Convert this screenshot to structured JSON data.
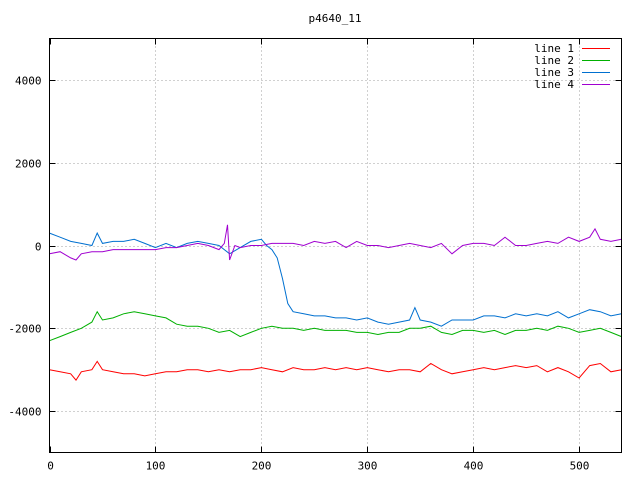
{
  "chart_data": {
    "type": "line",
    "title": "p4640_11",
    "xlabel": "",
    "ylabel": "",
    "xlim": [
      0,
      540
    ],
    "ylim": [
      -5000,
      5000
    ],
    "x_ticks": [
      0,
      100,
      200,
      300,
      400,
      500
    ],
    "y_ticks": [
      -4000,
      -2000,
      0,
      2000,
      4000
    ],
    "grid": true,
    "legend_position": "top-right",
    "series": [
      {
        "name": "line 1",
        "color": "#ff0000",
        "x": [
          0,
          10,
          20,
          25,
          30,
          40,
          45,
          50,
          60,
          70,
          80,
          90,
          100,
          110,
          120,
          130,
          140,
          150,
          160,
          170,
          180,
          190,
          200,
          210,
          220,
          230,
          240,
          250,
          260,
          270,
          280,
          290,
          300,
          310,
          320,
          330,
          340,
          350,
          360,
          370,
          380,
          390,
          400,
          410,
          420,
          430,
          440,
          450,
          460,
          470,
          480,
          490,
          500,
          510,
          520,
          530,
          540
        ],
        "values": [
          -3000,
          -3050,
          -3100,
          -3250,
          -3050,
          -3000,
          -2800,
          -3000,
          -3050,
          -3100,
          -3100,
          -3150,
          -3100,
          -3050,
          -3050,
          -3000,
          -3000,
          -3050,
          -3000,
          -3050,
          -3000,
          -3000,
          -2950,
          -3000,
          -3050,
          -2950,
          -3000,
          -3000,
          -2950,
          -3000,
          -2950,
          -3000,
          -2950,
          -3000,
          -3050,
          -3000,
          -3000,
          -3050,
          -2850,
          -3000,
          -3100,
          -3050,
          -3000,
          -2950,
          -3000,
          -2950,
          -2900,
          -2950,
          -2900,
          -3050,
          -2950,
          -3050,
          -3200,
          -2900,
          -2850,
          -3050,
          -3000
        ]
      },
      {
        "name": "line 2",
        "color": "#00b000",
        "x": [
          0,
          10,
          20,
          30,
          40,
          45,
          50,
          60,
          70,
          80,
          90,
          100,
          110,
          120,
          130,
          140,
          150,
          160,
          170,
          180,
          190,
          200,
          210,
          220,
          230,
          240,
          250,
          260,
          270,
          280,
          290,
          300,
          310,
          320,
          330,
          340,
          350,
          360,
          370,
          380,
          390,
          400,
          410,
          420,
          430,
          440,
          450,
          460,
          470,
          480,
          490,
          500,
          510,
          520,
          530,
          540
        ],
        "values": [
          -2300,
          -2200,
          -2100,
          -2000,
          -1850,
          -1600,
          -1800,
          -1750,
          -1650,
          -1600,
          -1650,
          -1700,
          -1750,
          -1900,
          -1950,
          -1950,
          -2000,
          -2100,
          -2050,
          -2200,
          -2100,
          -2000,
          -1950,
          -2000,
          -2000,
          -2050,
          -2000,
          -2050,
          -2050,
          -2050,
          -2100,
          -2100,
          -2150,
          -2100,
          -2100,
          -2000,
          -2000,
          -1950,
          -2100,
          -2150,
          -2050,
          -2050,
          -2100,
          -2050,
          -2150,
          -2050,
          -2050,
          -2000,
          -2050,
          -1950,
          -2000,
          -2100,
          -2050,
          -2000,
          -2100,
          -2200
        ]
      },
      {
        "name": "line 3",
        "color": "#0070d0",
        "x": [
          0,
          10,
          20,
          30,
          40,
          45,
          50,
          60,
          70,
          80,
          90,
          100,
          110,
          120,
          130,
          140,
          150,
          160,
          170,
          180,
          190,
          200,
          205,
          210,
          215,
          220,
          225,
          230,
          240,
          250,
          260,
          270,
          280,
          290,
          300,
          310,
          320,
          330,
          340,
          345,
          350,
          360,
          370,
          380,
          390,
          400,
          410,
          420,
          430,
          440,
          450,
          460,
          470,
          480,
          490,
          500,
          510,
          520,
          530,
          540
        ],
        "values": [
          300,
          200,
          100,
          50,
          0,
          300,
          50,
          100,
          100,
          150,
          50,
          -50,
          50,
          -50,
          50,
          100,
          50,
          0,
          -200,
          -50,
          100,
          150,
          0,
          -100,
          -300,
          -800,
          -1400,
          -1600,
          -1650,
          -1700,
          -1700,
          -1750,
          -1750,
          -1800,
          -1750,
          -1850,
          -1900,
          -1850,
          -1800,
          -1500,
          -1800,
          -1850,
          -1950,
          -1800,
          -1800,
          -1800,
          -1700,
          -1700,
          -1750,
          -1650,
          -1700,
          -1650,
          -1700,
          -1600,
          -1750,
          -1650,
          -1550,
          -1600,
          -1700,
          -1650
        ]
      },
      {
        "name": "line 4",
        "color": "#a000d0",
        "x": [
          0,
          10,
          20,
          25,
          30,
          40,
          50,
          60,
          70,
          80,
          90,
          100,
          110,
          120,
          130,
          140,
          150,
          160,
          165,
          168,
          170,
          175,
          180,
          190,
          200,
          210,
          220,
          230,
          240,
          250,
          260,
          270,
          280,
          290,
          300,
          310,
          320,
          330,
          340,
          350,
          360,
          370,
          380,
          390,
          400,
          410,
          420,
          430,
          440,
          450,
          460,
          470,
          480,
          490,
          500,
          510,
          515,
          520,
          530,
          540
        ],
        "values": [
          -200,
          -150,
          -300,
          -350,
          -200,
          -150,
          -150,
          -100,
          -100,
          -100,
          -100,
          -100,
          -50,
          -50,
          0,
          50,
          0,
          -100,
          50,
          500,
          -350,
          0,
          -50,
          0,
          0,
          50,
          50,
          50,
          0,
          100,
          50,
          100,
          -50,
          100,
          0,
          0,
          -50,
          0,
          50,
          0,
          -50,
          50,
          -200,
          0,
          50,
          50,
          0,
          200,
          0,
          0,
          50,
          100,
          50,
          200,
          100,
          200,
          400,
          150,
          100,
          150
        ]
      }
    ]
  }
}
